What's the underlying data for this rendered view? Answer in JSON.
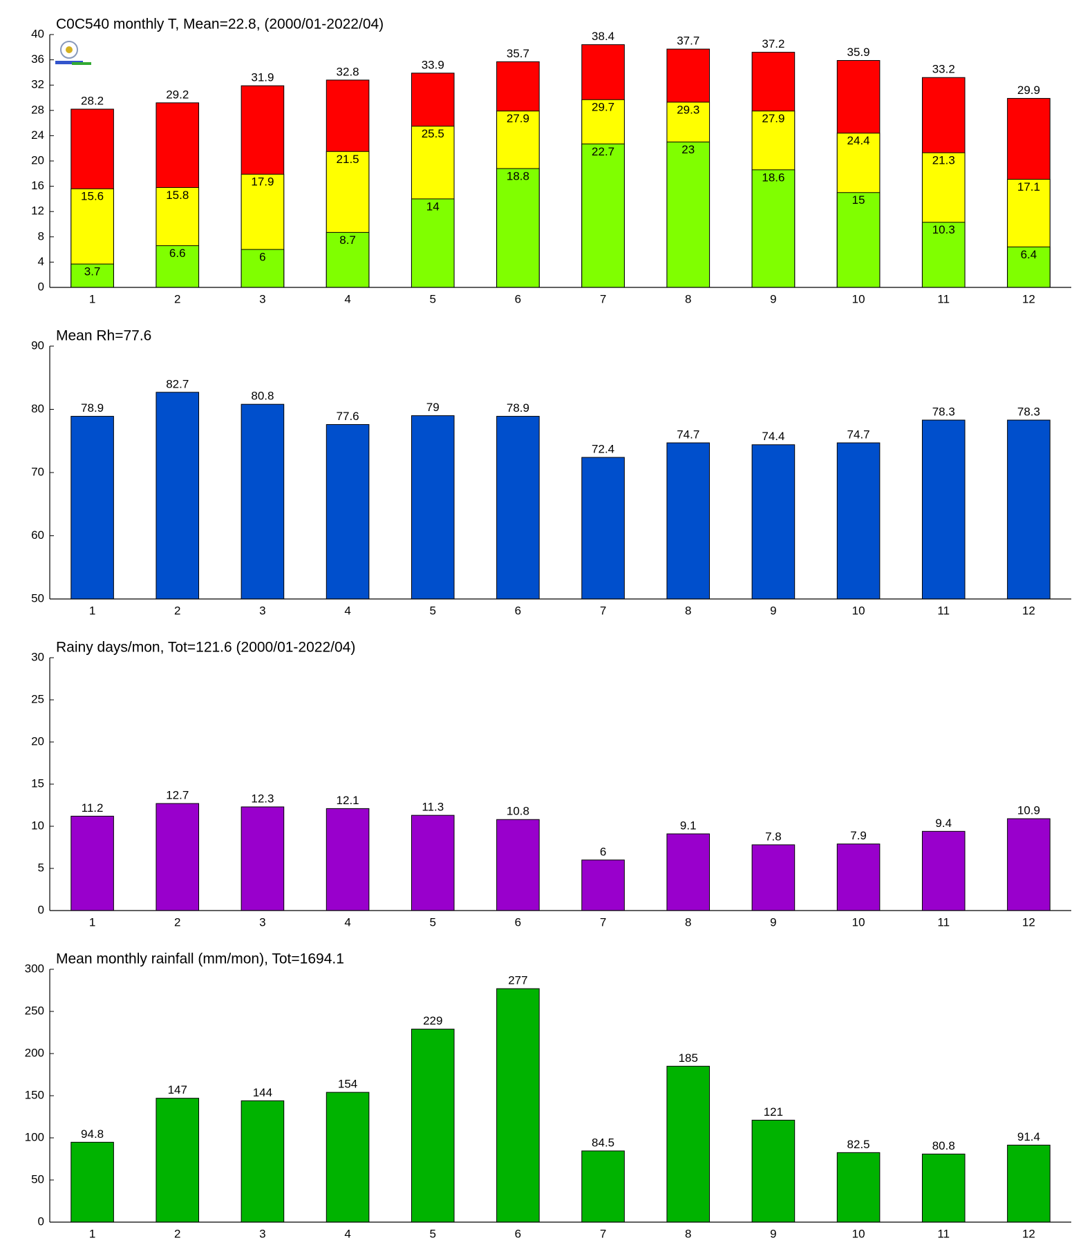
{
  "chart_data": [
    {
      "type": "bar",
      "title": "C0C540 monthly T, Mean=22.8, (2000/01-2022/04)",
      "categories": [
        "1",
        "2",
        "3",
        "4",
        "5",
        "6",
        "7",
        "8",
        "9",
        "10",
        "11",
        "12"
      ],
      "series": [
        {
          "color": "#80ff00",
          "values": [
            3.7,
            6.6,
            6,
            8.7,
            14,
            18.8,
            22.7,
            23,
            18.6,
            15,
            10.3,
            6.4
          ]
        },
        {
          "color": "#ffff00",
          "values": [
            15.6,
            15.8,
            17.9,
            21.5,
            25.5,
            27.9,
            29.7,
            29.3,
            27.9,
            24.4,
            21.3,
            17.1
          ]
        },
        {
          "color": "#ff0000",
          "values": [
            28.2,
            29.2,
            31.9,
            32.8,
            33.9,
            35.7,
            38.4,
            37.7,
            37.2,
            35.9,
            33.2,
            29.9
          ]
        }
      ],
      "ylim": [
        0,
        40
      ],
      "yticks": [
        0,
        4,
        8,
        12,
        16,
        20,
        24,
        28,
        32,
        36,
        40
      ]
    },
    {
      "type": "bar",
      "title": "Mean Rh=77.6",
      "categories": [
        "1",
        "2",
        "3",
        "4",
        "5",
        "6",
        "7",
        "8",
        "9",
        "10",
        "11",
        "12"
      ],
      "values": [
        78.9,
        82.7,
        80.8,
        77.6,
        79,
        78.9,
        72.4,
        74.7,
        74.4,
        74.7,
        78.3,
        78.3
      ],
      "color": "#004fcc",
      "ylim": [
        50,
        90
      ],
      "yticks": [
        50,
        60,
        70,
        80,
        90
      ]
    },
    {
      "type": "bar",
      "title": "Rainy days/mon, Tot=121.6 (2000/01-2022/04)",
      "categories": [
        "1",
        "2",
        "3",
        "4",
        "5",
        "6",
        "7",
        "8",
        "9",
        "10",
        "11",
        "12"
      ],
      "values": [
        11.2,
        12.7,
        12.3,
        12.1,
        11.3,
        10.8,
        6,
        9.1,
        7.8,
        7.9,
        9.4,
        10.9
      ],
      "color": "#9900cc",
      "ylim": [
        0,
        30
      ],
      "yticks": [
        0,
        5,
        10,
        15,
        20,
        25,
        30
      ]
    },
    {
      "type": "bar",
      "title": "Mean monthly rainfall (mm/mon), Tot=1694.1",
      "categories": [
        "1",
        "2",
        "3",
        "4",
        "5",
        "6",
        "7",
        "8",
        "9",
        "10",
        "11",
        "12"
      ],
      "values": [
        94.8,
        147,
        144,
        154,
        229,
        277,
        84.5,
        185,
        121,
        82.5,
        80.8,
        91.4
      ],
      "color": "#00b300",
      "ylim": [
        0,
        300
      ],
      "yticks": [
        0,
        50,
        100,
        150,
        200,
        250,
        300
      ]
    }
  ]
}
